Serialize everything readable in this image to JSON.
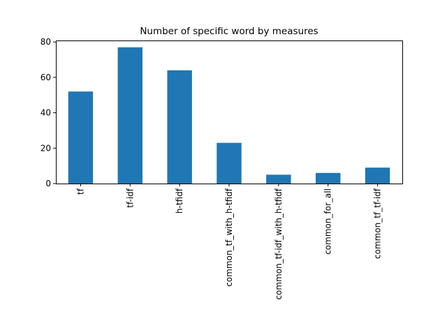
{
  "chart_data": {
    "type": "bar",
    "title": "Number of specific word by measures",
    "xlabel": "",
    "ylabel": "",
    "categories": [
      "tf",
      "tf-idf",
      "h-tfidf",
      "common_tf_with_h-tfidf",
      "common_tf-idf_with_h-tfidf",
      "common_for_all",
      "common_tf_tf-idf"
    ],
    "values": [
      52,
      77,
      64,
      23,
      5,
      6,
      9
    ],
    "ylim": [
      0,
      80.85
    ],
    "yticks": [
      0,
      20,
      40,
      60,
      80
    ],
    "bar_color": "#1f77b4",
    "grid": false,
    "legend": "none"
  }
}
